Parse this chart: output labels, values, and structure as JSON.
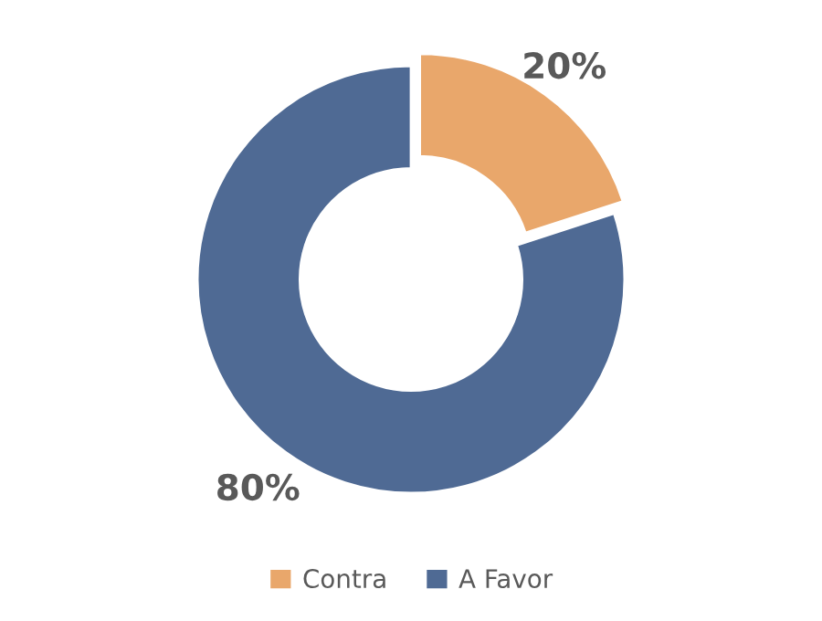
{
  "chart_data": {
    "type": "donut",
    "categories": [
      "Contra",
      "A Favor"
    ],
    "values": [
      20,
      80
    ],
    "colors": [
      "#e9a76b",
      "#4f6a94"
    ],
    "value_labels": [
      "20%",
      "80%"
    ],
    "legend": "bottom"
  }
}
